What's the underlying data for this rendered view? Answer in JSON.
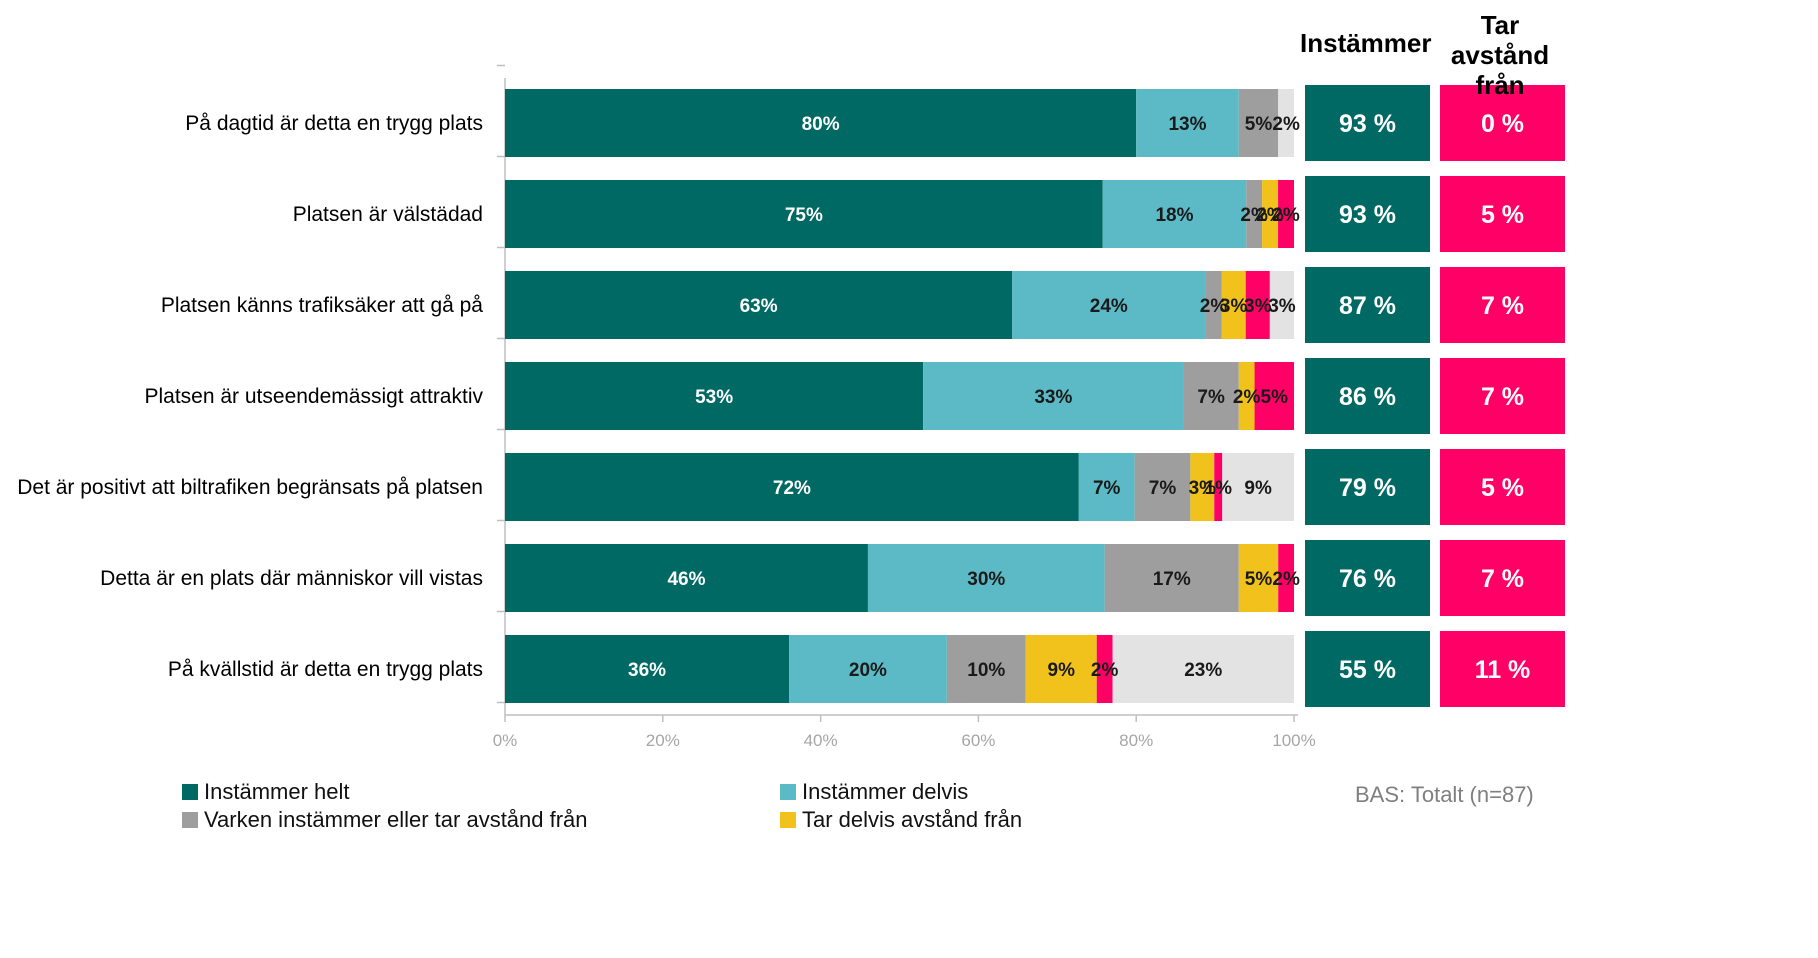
{
  "chart_data": {
    "type": "bar",
    "orientation": "horizontal",
    "stacked": true,
    "categories": [
      "På dagtid är detta en trygg plats",
      "Platsen är välstädad",
      "Platsen känns trafiksäker att gå på",
      "Platsen är utseendemässigt attraktiv",
      "Det är positivt att biltrafiken begränsats på platsen",
      "Detta är en plats där människor vill vistas",
      "På kvällstid är detta en trygg plats"
    ],
    "series": [
      {
        "name": "Instämmer helt",
        "color": "#006964",
        "values": [
          80,
          75,
          63,
          53,
          72,
          46,
          36
        ],
        "labels": [
          "80%",
          "75%",
          "63%",
          "53%",
          "72%",
          "46%",
          "36%"
        ]
      },
      {
        "name": "Instämmer delvis",
        "color": "#5bbac5",
        "values": [
          13,
          18,
          24,
          33,
          7,
          30,
          20
        ],
        "labels": [
          "13%",
          "18%",
          "24%",
          "33%",
          "7%",
          "30%",
          "20%"
        ]
      },
      {
        "name": "Varken instämmer eller tar avstånd från",
        "color": "#9e9e9e",
        "values": [
          5,
          2,
          2,
          7,
          7,
          17,
          10
        ],
        "labels": [
          "5%",
          "2%",
          "2%",
          "7%",
          "7%",
          "17%",
          "10%"
        ]
      },
      {
        "name": "Tar delvis avstånd från",
        "color": "#f1c21b",
        "values": [
          0,
          2,
          3,
          2,
          3,
          5,
          9
        ],
        "labels": [
          "0%",
          "2%",
          "3%",
          "2%",
          "3%",
          "5%",
          "9%"
        ]
      },
      {
        "name": "",
        "color": "#ff0066",
        "values": [
          0,
          2,
          3,
          5,
          1,
          2,
          2
        ],
        "labels": [
          "0%",
          "2%",
          "3%",
          "5%",
          "1%",
          "2%",
          "2%"
        ]
      },
      {
        "name": "",
        "color": "#e3e3e3",
        "values": [
          2,
          0,
          3,
          0,
          9,
          0,
          23
        ],
        "labels": [
          "2%",
          "",
          "3%",
          "",
          "9%",
          "",
          "23%"
        ]
      }
    ],
    "xlim": [
      0,
      100
    ],
    "x_ticks": [
      "0%",
      "20%",
      "40%",
      "60%",
      "80%",
      "100%"
    ],
    "summary_columns": [
      {
        "title": "Instämmer",
        "color": "#006964",
        "values": [
          "93 %",
          "93 %",
          "87 %",
          "86 %",
          "79 %",
          "76 %",
          "55 %"
        ]
      },
      {
        "title": "Tar avstånd från",
        "color": "#ff0066",
        "values": [
          "0 %",
          "5 %",
          "7 %",
          "7 %",
          "5 %",
          "7 %",
          "11 %"
        ]
      }
    ],
    "legend_position": "bottom",
    "base_note": "BAS: Totalt (n=87)"
  },
  "header": {
    "agree_title": "Instämmer",
    "disagree_title_line1": "Tar avstånd",
    "disagree_title_line2": "från"
  },
  "legend": {
    "items": [
      {
        "label": "Instämmer helt",
        "color": "#006964"
      },
      {
        "label": "Instämmer delvis",
        "color": "#5bbac5"
      },
      {
        "label": "Varken instämmer eller tar avstånd från",
        "color": "#9e9e9e"
      },
      {
        "label": "Tar delvis avstånd från",
        "color": "#f1c21b"
      }
    ]
  },
  "footer": {
    "base_note": "BAS: Totalt (n=87)"
  }
}
